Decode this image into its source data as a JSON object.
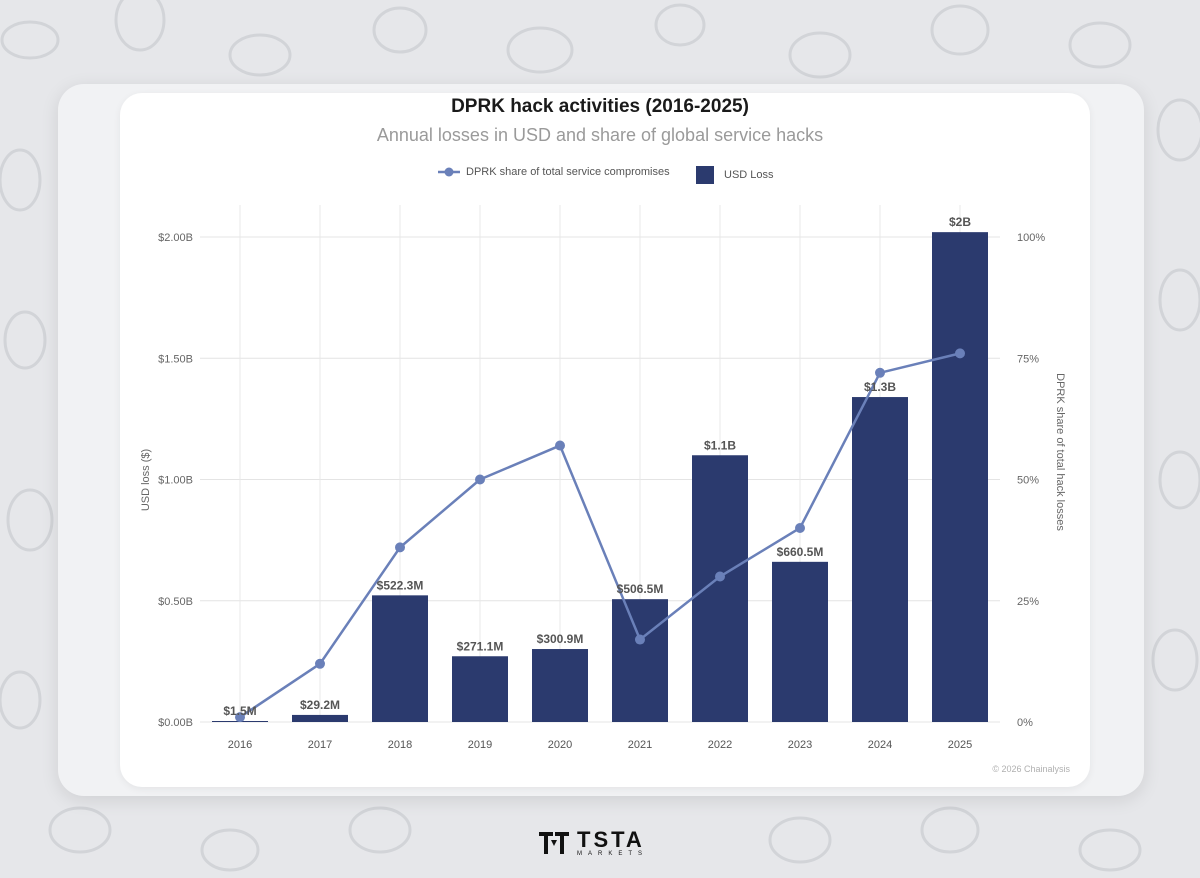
{
  "chart_data": {
    "type": "bar",
    "title": "DPRK hack activities (2016-2025)",
    "subtitle": "Annual losses in USD and share of global service hacks",
    "categories": [
      "2016",
      "2017",
      "2018",
      "2019",
      "2020",
      "2021",
      "2022",
      "2023",
      "2024",
      "2025"
    ],
    "series": [
      {
        "name": "USD Loss",
        "type": "bar",
        "axis": "left",
        "color": "#2b3a6e",
        "values": [
          0.0015,
          0.0292,
          0.5223,
          0.2711,
          0.3009,
          0.5065,
          1.1,
          0.6605,
          1.34,
          2.02
        ],
        "labels": [
          "$1.5M",
          "$29.2M",
          "$522.3M",
          "$271.1M",
          "$300.9M",
          "$506.5M",
          "$1.1B",
          "$660.5M",
          "$1.3B",
          "$2B"
        ]
      },
      {
        "name": "DPRK share of total service compromises",
        "type": "line",
        "axis": "right",
        "color": "#6a80b9",
        "values": [
          1,
          12,
          36,
          50,
          57,
          17,
          30,
          40,
          72,
          76
        ]
      }
    ],
    "xlabel": "",
    "ylabel": "USD loss ($)",
    "ylabel_right": "DPRK share of total hack losses",
    "ylim": [
      0,
      2.0
    ],
    "ylim_right": [
      0,
      100
    ],
    "yticks": [
      "$0.00B",
      "$0.50B",
      "$1.00B",
      "$1.50B",
      "$2.00B"
    ],
    "yticks_right": [
      "0%",
      "25%",
      "50%",
      "75%",
      "100%"
    ],
    "grid": true,
    "legend": "top-center"
  },
  "footer": {
    "copyright": "© 2026 Chainalysis",
    "brand": "TSTA",
    "brand_sub": "MARKETS"
  }
}
